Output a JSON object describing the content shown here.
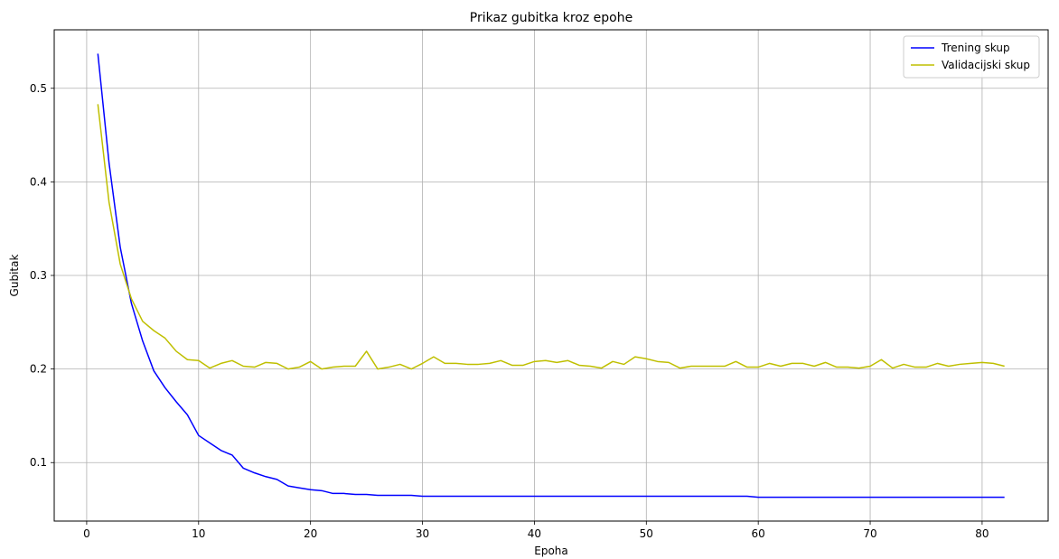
{
  "chart_data": {
    "type": "line",
    "title": "Prikaz gubitka kroz epohe",
    "xlabel": "Epoha",
    "ylabel": "Gubitak",
    "xlim": [
      -2.9,
      85.9
    ],
    "ylim": [
      0.0375,
      0.5625
    ],
    "xticks": [
      0,
      10,
      20,
      30,
      40,
      50,
      60,
      70,
      80
    ],
    "yticks": [
      0.1,
      0.2,
      0.3,
      0.4,
      0.5
    ],
    "grid": true,
    "legend_position": "top-right",
    "x": [
      1,
      2,
      3,
      4,
      5,
      6,
      7,
      8,
      9,
      10,
      11,
      12,
      13,
      14,
      15,
      16,
      17,
      18,
      19,
      20,
      21,
      22,
      23,
      24,
      25,
      26,
      27,
      28,
      29,
      30,
      31,
      32,
      33,
      34,
      35,
      36,
      37,
      38,
      39,
      40,
      41,
      42,
      43,
      44,
      45,
      46,
      47,
      48,
      49,
      50,
      51,
      52,
      53,
      54,
      55,
      56,
      57,
      58,
      59,
      60,
      61,
      62,
      63,
      64,
      65,
      66,
      67,
      68,
      69,
      70,
      71,
      72,
      73,
      74,
      75,
      76,
      77,
      78,
      79,
      80,
      81,
      82
    ],
    "series": [
      {
        "name": "Trening skup",
        "color": "#0000ff",
        "values": [
          0.537,
          0.42,
          0.33,
          0.27,
          0.23,
          0.198,
          0.18,
          0.165,
          0.151,
          0.129,
          0.121,
          0.113,
          0.108,
          0.094,
          0.089,
          0.085,
          0.082,
          0.075,
          0.073,
          0.071,
          0.07,
          0.067,
          0.067,
          0.066,
          0.066,
          0.065,
          0.065,
          0.065,
          0.065,
          0.064,
          0.064,
          0.064,
          0.064,
          0.064,
          0.064,
          0.064,
          0.064,
          0.064,
          0.064,
          0.064,
          0.064,
          0.064,
          0.064,
          0.064,
          0.064,
          0.064,
          0.064,
          0.064,
          0.064,
          0.064,
          0.064,
          0.064,
          0.064,
          0.064,
          0.064,
          0.064,
          0.064,
          0.064,
          0.064,
          0.063,
          0.063,
          0.063,
          0.063,
          0.063,
          0.063,
          0.063,
          0.063,
          0.063,
          0.063,
          0.063,
          0.063,
          0.063,
          0.063,
          0.063,
          0.063,
          0.063,
          0.063,
          0.063,
          0.063,
          0.063,
          0.063,
          0.063
        ]
      },
      {
        "name": "Validacijski skup",
        "color": "#bfbf00",
        "values": [
          0.483,
          0.378,
          0.312,
          0.275,
          0.251,
          0.241,
          0.233,
          0.219,
          0.21,
          0.209,
          0.201,
          0.206,
          0.209,
          0.203,
          0.202,
          0.207,
          0.206,
          0.2,
          0.202,
          0.208,
          0.2,
          0.202,
          0.203,
          0.203,
          0.219,
          0.2,
          0.202,
          0.205,
          0.2,
          0.206,
          0.213,
          0.206,
          0.206,
          0.205,
          0.205,
          0.206,
          0.209,
          0.204,
          0.204,
          0.208,
          0.209,
          0.207,
          0.209,
          0.204,
          0.203,
          0.201,
          0.208,
          0.205,
          0.213,
          0.211,
          0.208,
          0.207,
          0.201,
          0.203,
          0.203,
          0.203,
          0.203,
          0.208,
          0.202,
          0.202,
          0.206,
          0.203,
          0.206,
          0.206,
          0.203,
          0.207,
          0.202,
          0.202,
          0.201,
          0.203,
          0.21,
          0.201,
          0.205,
          0.202,
          0.202,
          0.206,
          0.203,
          0.205,
          0.206,
          0.207,
          0.206,
          0.203
        ]
      }
    ]
  }
}
